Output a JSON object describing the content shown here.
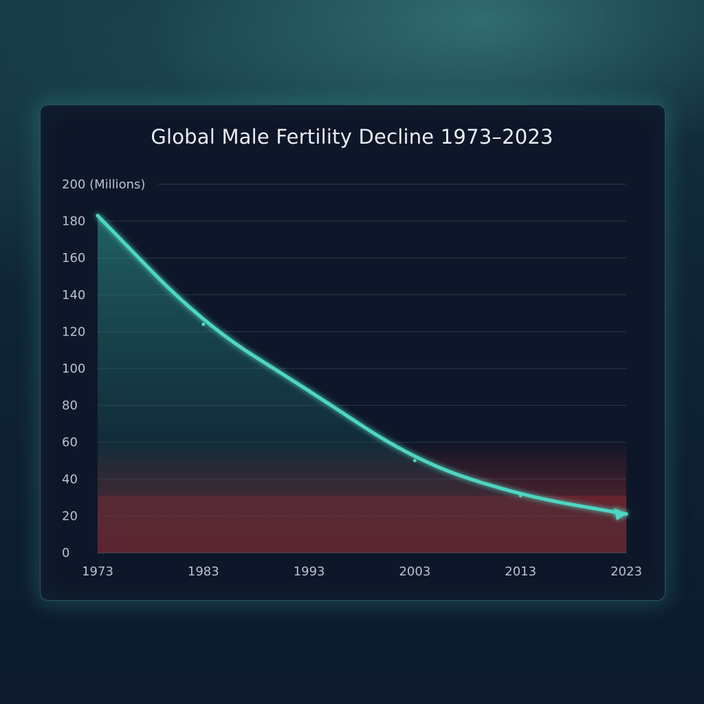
{
  "chart_data": {
    "type": "line",
    "title": "Global Male Fertility Decline 1973–2023",
    "y_unit_label": "(Millions)",
    "x": [
      1973,
      1983,
      1993,
      2003,
      2013,
      2023
    ],
    "x_tick_labels": [
      "1973",
      "1983",
      "1993",
      "2003",
      "2013",
      "2023"
    ],
    "y_ticks": [
      0,
      20,
      40,
      60,
      80,
      100,
      120,
      140,
      160,
      180,
      200
    ],
    "y_tick_labels": [
      "0",
      "20",
      "40",
      "60",
      "80",
      "100",
      "120",
      "140",
      "160",
      "180",
      "200"
    ],
    "xlim": [
      1973,
      2023
    ],
    "ylim": [
      0,
      200
    ],
    "grid": true,
    "series": [
      {
        "values": [
          183,
          124,
          88,
          50,
          31,
          21
        ],
        "color": "#4fd6c2"
      }
    ],
    "danger_zone": {
      "below": 31,
      "color": "#8a2a30"
    },
    "end_marker": "arrow"
  }
}
